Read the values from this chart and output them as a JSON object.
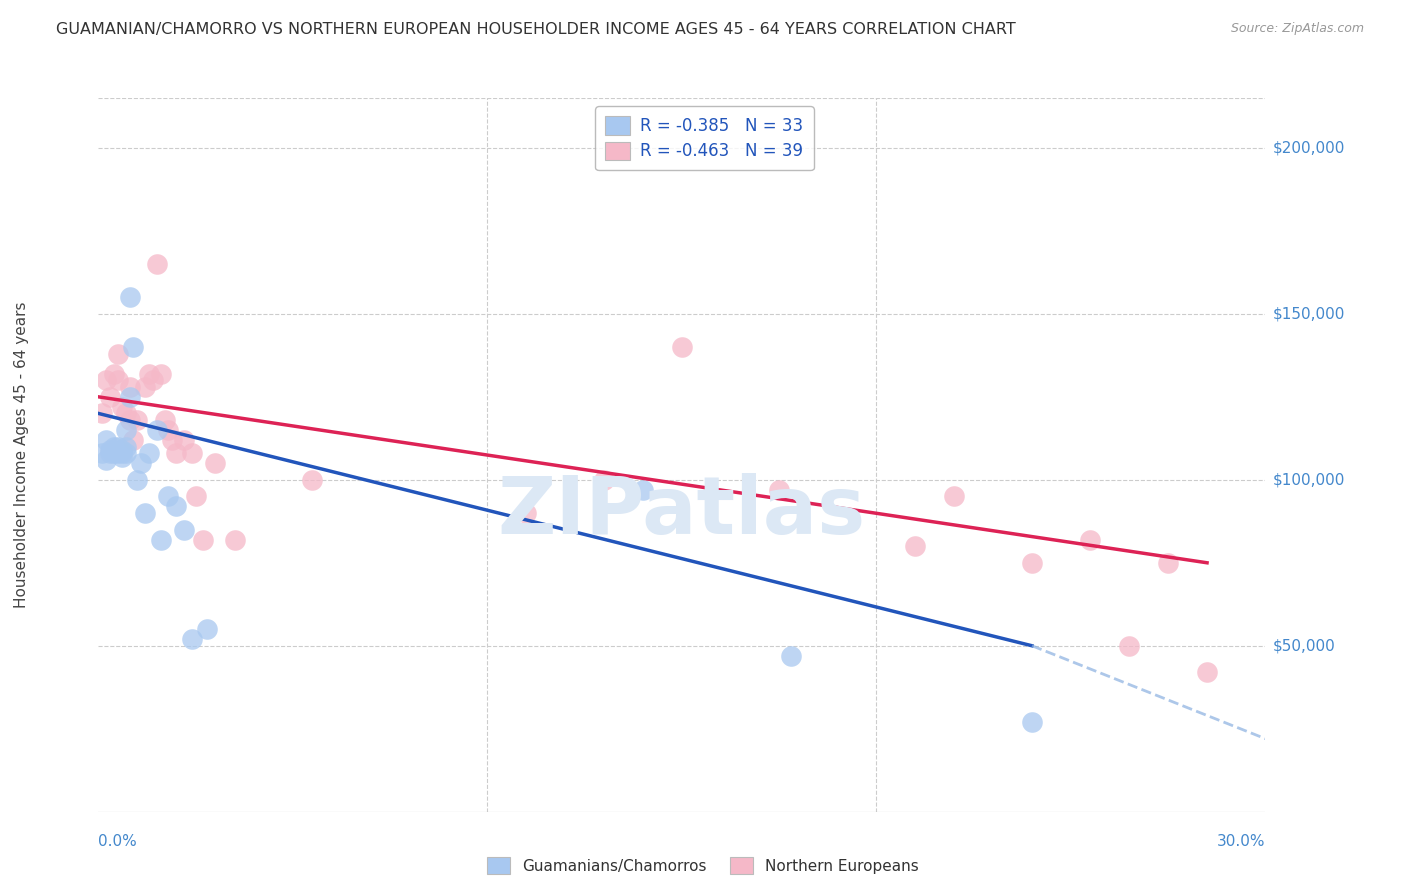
{
  "title": "GUAMANIAN/CHAMORRO VS NORTHERN EUROPEAN HOUSEHOLDER INCOME AGES 45 - 64 YEARS CORRELATION CHART",
  "source": "Source: ZipAtlas.com",
  "ylabel": "Householder Income Ages 45 - 64 years",
  "legend_blue_label": "Guamanians/Chamorros",
  "legend_pink_label": "Northern Europeans",
  "R_blue": -0.385,
  "N_blue": 33,
  "R_pink": -0.463,
  "N_pink": 39,
  "blue_color": "#a8c8f0",
  "pink_color": "#f5b8c8",
  "line_blue": "#2255bb",
  "line_pink": "#dd2255",
  "line_blue_dash": "#8ab0e0",
  "watermark_color": "#dce8f5",
  "right_label_color": "#4488cc",
  "title_color": "#333333",
  "source_color": "#999999",
  "grid_color": "#cccccc",
  "ytick_values": [
    50000,
    100000,
    150000,
    200000
  ],
  "ytick_labels": [
    "$50,000",
    "$100,000",
    "$150,000",
    "$200,000"
  ],
  "xlim": [
    0,
    0.3
  ],
  "ylim": [
    0,
    215000
  ],
  "blue_line_x0": 0.0,
  "blue_line_y0": 120000,
  "blue_line_x1": 0.24,
  "blue_line_y1": 50000,
  "blue_line_dash_x1": 0.3,
  "blue_line_dash_y1": 22000,
  "pink_line_x0": 0.0,
  "pink_line_y0": 125000,
  "pink_line_x1": 0.285,
  "pink_line_y1": 75000,
  "blue_scatter_x": [
    0.001,
    0.002,
    0.002,
    0.003,
    0.003,
    0.004,
    0.004,
    0.005,
    0.005,
    0.005,
    0.006,
    0.006,
    0.006,
    0.007,
    0.007,
    0.007,
    0.008,
    0.008,
    0.009,
    0.01,
    0.011,
    0.012,
    0.013,
    0.015,
    0.016,
    0.018,
    0.02,
    0.022,
    0.024,
    0.028,
    0.14,
    0.178,
    0.24
  ],
  "blue_scatter_y": [
    108000,
    112000,
    106000,
    109000,
    108000,
    110000,
    108000,
    110000,
    109000,
    108000,
    107000,
    108000,
    109000,
    108000,
    110000,
    115000,
    125000,
    155000,
    140000,
    100000,
    105000,
    90000,
    108000,
    115000,
    82000,
    95000,
    92000,
    85000,
    52000,
    55000,
    97000,
    47000,
    27000
  ],
  "pink_scatter_x": [
    0.001,
    0.002,
    0.003,
    0.004,
    0.005,
    0.005,
    0.006,
    0.007,
    0.008,
    0.008,
    0.009,
    0.01,
    0.012,
    0.013,
    0.014,
    0.015,
    0.016,
    0.017,
    0.018,
    0.019,
    0.02,
    0.022,
    0.024,
    0.025,
    0.027,
    0.03,
    0.035,
    0.055,
    0.11,
    0.13,
    0.15,
    0.175,
    0.21,
    0.22,
    0.24,
    0.255,
    0.265,
    0.275,
    0.285
  ],
  "pink_scatter_y": [
    120000,
    130000,
    125000,
    132000,
    138000,
    130000,
    122000,
    120000,
    128000,
    118000,
    112000,
    118000,
    128000,
    132000,
    130000,
    165000,
    132000,
    118000,
    115000,
    112000,
    108000,
    112000,
    108000,
    95000,
    82000,
    105000,
    82000,
    100000,
    90000,
    100000,
    140000,
    97000,
    80000,
    95000,
    75000,
    82000,
    50000,
    75000,
    42000
  ]
}
